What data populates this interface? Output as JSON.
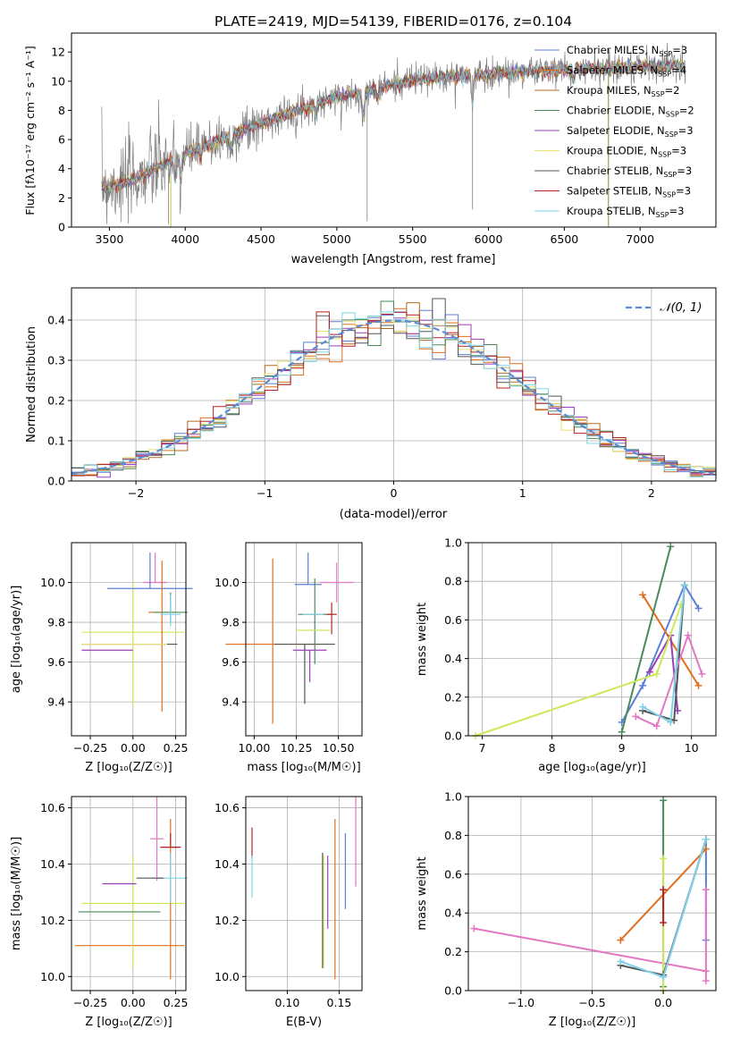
{
  "colors": {
    "c1": "#5b7fd6",
    "c2": "#e0701f",
    "c3": "#b36a1e",
    "c4": "#4a8a5a",
    "c5": "#9b3fb8",
    "c6": "#e6e070",
    "c7": "#555555",
    "c8": "#b22222",
    "c9": "#7fd3e8",
    "pink": "#e377c2",
    "lime": "#cde85a",
    "spectrum": "#808080"
  },
  "chart_data": [
    {
      "id": "spectrum",
      "type": "line",
      "title": "PLATE=2419, MJD=54139, FIBERID=0176, z=0.104",
      "xlabel": "wavelength [Angstrom, rest frame]",
      "ylabel": "Flux [fλ10⁻¹⁷ erg cm⁻² s⁻¹ A⁻¹]",
      "xlim": [
        3250,
        7500
      ],
      "ylim": [
        0,
        13.3
      ],
      "xticks": [
        3500,
        4000,
        4500,
        5000,
        5500,
        6000,
        6500,
        7000
      ],
      "yticks": [
        0,
        2,
        4,
        6,
        8,
        10,
        12
      ],
      "legend_position": "right",
      "legend": [
        "Chabrier MILES, N_SSP=3",
        "Salpeter MILES, N_SSP=4",
        "Kroupa MILES, N_SSP=2",
        "Chabrier ELODIE, N_SSP=2",
        "Salpeter ELODIE, N_SSP=3",
        "Kroupa ELODIE, N_SSP=3",
        "Chabrier STELIB, N_SSP=3",
        "Salpeter STELIB, N_SSP=3",
        "Kroupa STELIB, N_SSP=3"
      ],
      "continuum": {
        "x": [
          3450,
          3600,
          3800,
          4000,
          4300,
          4600,
          5000,
          5500,
          6000,
          6500,
          7000,
          7300
        ],
        "y": [
          2.8,
          3.0,
          4.0,
          5.0,
          6.3,
          7.5,
          8.9,
          10.1,
          10.5,
          10.8,
          11.0,
          11.1
        ]
      }
    },
    {
      "id": "residual-histogram",
      "type": "bar",
      "xlabel": "(data-model)/error",
      "ylabel": "Normed distribution",
      "xlim": [
        -2.5,
        2.5
      ],
      "ylim": [
        0,
        0.48
      ],
      "xticks": [
        -2,
        -1,
        0,
        1,
        2
      ],
      "yticks": [
        0.0,
        0.1,
        0.2,
        0.3,
        0.4
      ],
      "legend": [
        "𝒩(0, 1)"
      ],
      "legend_position": "top-right",
      "grid": true
    },
    {
      "id": "age-vs-Z",
      "type": "scatter",
      "xlabel": "Z [log₁₀(Z/Z☉)]",
      "ylabel": "age  [log₁₀(age/yr)]",
      "xlim": [
        -0.36,
        0.31
      ],
      "ylim": [
        9.23,
        10.2
      ],
      "xticks": [
        -0.25,
        0.0,
        0.25
      ],
      "yticks": [
        9.4,
        9.6,
        9.8,
        10.0
      ],
      "points": [
        {
          "x": -0.02,
          "y": 9.69,
          "xerr": 0.28,
          "yerr": [
            0.0,
            0.0
          ],
          "color": "c7"
        },
        {
          "x": 0.13,
          "y": 10.0,
          "xerr": 0.07,
          "yerr": [
            0.0,
            0.15
          ],
          "color": "pink"
        },
        {
          "x": 0.0,
          "y": 9.75,
          "xerr": 0.3,
          "yerr": [
            0.37,
            0.25
          ],
          "color": "lime"
        },
        {
          "x": -0.15,
          "y": 9.66,
          "xerr": 0.15,
          "yerr": [
            0.0,
            0.0
          ],
          "color": "c5"
        },
        {
          "x": 0.1,
          "y": 9.97,
          "xerr": 0.25,
          "yerr": [
            0.0,
            0.18
          ],
          "color": "c1"
        },
        {
          "x": 0.17,
          "y": 9.85,
          "xerr": 0.08,
          "yerr": [
            0.5,
            0.26
          ],
          "color": "c2"
        },
        {
          "x": 0.22,
          "y": 9.85,
          "xerr": 0.1,
          "yerr": [
            0.05,
            0.1
          ],
          "color": "c4"
        },
        {
          "x": 0.22,
          "y": 9.84,
          "xerr": 0.06,
          "yerr": [
            0.06,
            0.1
          ],
          "color": "c9"
        },
        {
          "x": -0.05,
          "y": 9.69,
          "xerr": 0.25,
          "yerr": [
            0.0,
            0.0
          ],
          "color": "c6"
        }
      ]
    },
    {
      "id": "age-vs-mass",
      "type": "scatter",
      "xlabel": "mass [log₁₀(M/M☉)]",
      "ylabel": "",
      "xlim": [
        9.95,
        10.64
      ],
      "ylim": [
        9.23,
        10.2
      ],
      "xticks": [
        10.0,
        10.25,
        10.5
      ],
      "yticks": [
        9.4,
        9.6,
        9.8,
        10.0
      ],
      "points": [
        {
          "x": 10.11,
          "y": 9.69,
          "xerr": 0.28,
          "yerr": [
            0.4,
            0.43
          ],
          "color": "c2"
        },
        {
          "x": 10.3,
          "y": 9.69,
          "xerr": 0.18,
          "yerr": [
            0.3,
            0.0
          ],
          "color": "c7"
        },
        {
          "x": 10.33,
          "y": 9.66,
          "xerr": 0.1,
          "yerr": [
            0.16,
            0.0
          ],
          "color": "c5"
        },
        {
          "x": 10.32,
          "y": 9.99,
          "xerr": 0.08,
          "yerr": [
            0.0,
            0.16
          ],
          "color": "c1"
        },
        {
          "x": 10.36,
          "y": 9.84,
          "xerr": 0.1,
          "yerr": [
            0.25,
            0.18
          ],
          "color": "c4"
        },
        {
          "x": 10.46,
          "y": 9.84,
          "xerr": 0.03,
          "yerr": [
            0.1,
            0.06
          ],
          "color": "c8"
        },
        {
          "x": 10.49,
          "y": 10.0,
          "xerr": 0.1,
          "yerr": [
            0.1,
            0.1
          ],
          "color": "pink"
        },
        {
          "x": 10.35,
          "y": 9.76,
          "xerr": 0.1,
          "yerr": [
            0.0,
            0.0
          ],
          "color": "lime"
        },
        {
          "x": 10.35,
          "y": 9.84,
          "xerr": 0.06,
          "yerr": [
            0.0,
            0.0
          ],
          "color": "c9"
        }
      ]
    },
    {
      "id": "massweight-vs-age",
      "type": "line",
      "xlabel": "age  [log₁₀(age/yr)]",
      "ylabel": "mass weight",
      "xlim": [
        6.8,
        10.35
      ],
      "ylim": [
        0.0,
        1.0
      ],
      "xticks": [
        7,
        8,
        9,
        10
      ],
      "yticks": [
        0.0,
        0.2,
        0.4,
        0.6,
        0.8,
        1.0
      ],
      "series": [
        {
          "color": "c1",
          "x": [
            9.0,
            9.3,
            9.9,
            10.1
          ],
          "y": [
            0.07,
            0.26,
            0.78,
            0.66
          ]
        },
        {
          "color": "c2",
          "x": [
            9.3,
            10.1
          ],
          "y": [
            0.73,
            0.26
          ]
        },
        {
          "color": "c4",
          "x": [
            9.0,
            9.7
          ],
          "y": [
            0.02,
            0.98
          ]
        },
        {
          "color": "c5",
          "x": [
            9.4,
            9.7,
            9.8
          ],
          "y": [
            0.33,
            0.52,
            0.13
          ]
        },
        {
          "color": "lime",
          "x": [
            6.9,
            9.5,
            9.85
          ],
          "y": [
            0.0,
            0.32,
            0.68
          ]
        },
        {
          "color": "c7",
          "x": [
            9.3,
            9.75,
            9.9
          ],
          "y": [
            0.13,
            0.08,
            0.78
          ]
        },
        {
          "color": "pink",
          "x": [
            9.2,
            9.5,
            9.95,
            10.15
          ],
          "y": [
            0.1,
            0.05,
            0.52,
            0.32
          ]
        },
        {
          "color": "c9",
          "x": [
            9.3,
            9.7,
            9.9
          ],
          "y": [
            0.15,
            0.07,
            0.78
          ]
        }
      ]
    },
    {
      "id": "mass-vs-Z",
      "type": "scatter",
      "xlabel": "Z [log₁₀(Z/Z☉)]",
      "ylabel": "mass [log₁₀(M/M☉)]",
      "xlim": [
        -0.36,
        0.31
      ],
      "ylim": [
        9.95,
        10.64
      ],
      "xticks": [
        -0.25,
        0.0,
        0.25
      ],
      "yticks": [
        10.0,
        10.2,
        10.4,
        10.6
      ],
      "points": [
        {
          "x": -0.02,
          "y": 10.11,
          "xerr": 0.32,
          "yerr": [
            0.0,
            0.0
          ],
          "color": "c2"
        },
        {
          "x": 0.14,
          "y": 10.49,
          "xerr": 0.04,
          "yerr": [
            0.15,
            0.15
          ],
          "color": "pink"
        },
        {
          "x": 0.0,
          "y": 10.26,
          "xerr": 0.3,
          "yerr": [
            0.23,
            0.17
          ],
          "color": "lime"
        },
        {
          "x": -0.08,
          "y": 10.23,
          "xerr": 0.24,
          "yerr": [
            0.0,
            0.0
          ],
          "color": "c4"
        },
        {
          "x": -0.08,
          "y": 10.33,
          "xerr": 0.1,
          "yerr": [
            0.0,
            0.0
          ],
          "color": "c5"
        },
        {
          "x": 0.22,
          "y": 10.46,
          "xerr": 0.05,
          "yerr": [
            0.47,
            0.1
          ],
          "color": "c2"
        },
        {
          "x": 0.22,
          "y": 10.35,
          "xerr": 0.1,
          "yerr": [
            0.09,
            0.09
          ],
          "color": "c9"
        },
        {
          "x": 0.22,
          "y": 10.46,
          "xerr": 0.06,
          "yerr": [
            0.0,
            0.05
          ],
          "color": "c8"
        },
        {
          "x": 0.1,
          "y": 10.35,
          "xerr": 0.08,
          "yerr": [
            0.0,
            0.0
          ],
          "color": "c7"
        }
      ]
    },
    {
      "id": "mass-vs-EBV",
      "type": "scatter",
      "xlabel": "E(B-V)",
      "ylabel": "",
      "xlim": [
        0.06,
        0.172
      ],
      "ylim": [
        9.95,
        10.64
      ],
      "xticks": [
        0.1,
        0.15
      ],
      "yticks": [
        10.0,
        10.2,
        10.4,
        10.6
      ],
      "points": [
        {
          "x": 0.066,
          "y": 10.45,
          "xerr": 0.0,
          "yerr": [
            0.03,
            0.08
          ],
          "color": "c8"
        },
        {
          "x": 0.066,
          "y": 10.35,
          "xerr": 0.0,
          "yerr": [
            0.07,
            0.08
          ],
          "color": "c9"
        },
        {
          "x": 0.134,
          "y": 10.23,
          "xerr": 0.0,
          "yerr": [
            0.2,
            0.21
          ],
          "color": "c7"
        },
        {
          "x": 0.135,
          "y": 10.23,
          "xerr": 0.0,
          "yerr": [
            0.2,
            0.2
          ],
          "color": "lime"
        },
        {
          "x": 0.139,
          "y": 10.3,
          "xerr": 0.0,
          "yerr": [
            0.13,
            0.13
          ],
          "color": "c5"
        },
        {
          "x": 0.146,
          "y": 10.27,
          "xerr": 0.0,
          "yerr": [
            0.28,
            0.29
          ],
          "color": "c2"
        },
        {
          "x": 0.156,
          "y": 10.37,
          "xerr": 0.0,
          "yerr": [
            0.13,
            0.14
          ],
          "color": "c1"
        },
        {
          "x": 0.166,
          "y": 10.48,
          "xerr": 0.0,
          "yerr": [
            0.16,
            0.16
          ],
          "color": "pink"
        }
      ]
    },
    {
      "id": "massweight-vs-Z",
      "type": "line",
      "xlabel": "Z [log₁₀(Z/Z☉)]",
      "ylabel": "mass weight",
      "xlim": [
        -1.37,
        0.37
      ],
      "ylim": [
        0.0,
        1.0
      ],
      "xticks": [
        -1.0,
        -0.5,
        0.0
      ],
      "yticks": [
        0.0,
        0.2,
        0.4,
        0.6,
        0.8,
        1.0
      ],
      "series": [
        {
          "color": "c1",
          "x": [
            0.0,
            0.3,
            0.3
          ],
          "y": [
            0.07,
            0.78,
            0.26
          ]
        },
        {
          "color": "c2",
          "x": [
            -0.3,
            0.3
          ],
          "y": [
            0.26,
            0.73
          ]
        },
        {
          "color": "c4",
          "x": [
            0.0,
            0.0
          ],
          "y": [
            0.02,
            0.98
          ]
        },
        {
          "color": "pink",
          "x": [
            -1.33,
            0.3,
            0.3,
            0.3
          ],
          "y": [
            0.32,
            0.1,
            0.05,
            0.52
          ]
        },
        {
          "color": "lime",
          "x": [
            0.0,
            0.0
          ],
          "y": [
            0.0,
            0.68
          ]
        },
        {
          "color": "c7",
          "x": [
            -0.3,
            0.0,
            0.3
          ],
          "y": [
            0.13,
            0.08,
            0.78
          ]
        },
        {
          "color": "c9",
          "x": [
            -0.3,
            0.0,
            0.3
          ],
          "y": [
            0.15,
            0.07,
            0.78
          ]
        },
        {
          "color": "c8",
          "x": [
            0.0,
            0.0
          ],
          "y": [
            0.35,
            0.52
          ]
        }
      ]
    }
  ]
}
